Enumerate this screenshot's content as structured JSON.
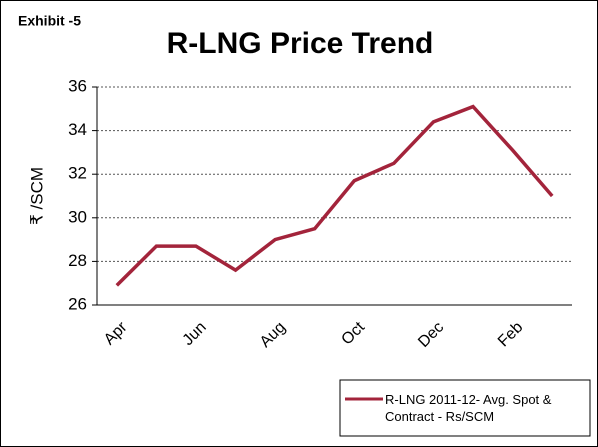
{
  "chart_data": {
    "type": "line",
    "exhibit": "Exhibit -5",
    "title": "R-LNG Price Trend",
    "y_label": "₹ /SCM",
    "categories": [
      "Apr",
      null,
      "Jun",
      null,
      "Aug",
      null,
      "Oct",
      null,
      "Dec",
      null,
      "Feb",
      null
    ],
    "series": [
      {
        "name": "R-LNG 2011-12- Avg. Spot & Contract - Rs/SCM",
        "color": "#a3243b",
        "values": [
          26.9,
          28.7,
          28.7,
          27.6,
          29.0,
          29.5,
          31.7,
          32.5,
          34.4,
          35.1,
          33.1,
          31.0
        ]
      }
    ],
    "ylim": [
      26,
      36
    ],
    "yticks": [
      26,
      28,
      30,
      32,
      34,
      36
    ],
    "grid": true,
    "legend": "bottom-right"
  }
}
